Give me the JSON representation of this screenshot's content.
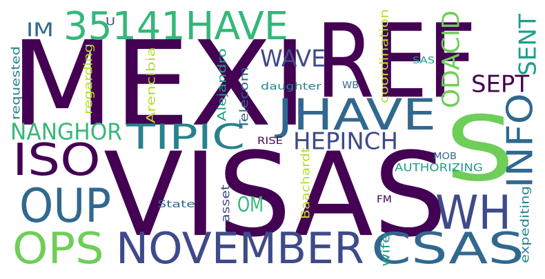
{
  "palette": {
    "dark_purple": "#440154",
    "indigo": "#3e4a89",
    "steel_blue": "#31688e",
    "teal": "#26828e",
    "sea_green": "#1f9e89",
    "green": "#35b779",
    "light_green": "#6ece58",
    "yellow_green": "#b5de2b",
    "background": "#ffffff"
  },
  "words": [
    {
      "text": "MEXI",
      "rotated": false,
      "color": "#440154"
    },
    {
      "text": "REF",
      "rotated": false,
      "color": "#440154"
    },
    {
      "text": "VISAS",
      "rotated": false,
      "color": "#440154"
    },
    {
      "text": "S",
      "rotated": false,
      "color": "#6ece58"
    },
    {
      "text": "35141HAVE",
      "rotated": false,
      "color": "#35b779"
    },
    {
      "text": "IM",
      "rotated": false,
      "color": "#31688e"
    },
    {
      "text": "U",
      "rotated": false,
      "color": "#3e4a89"
    },
    {
      "text": "WAVE",
      "rotated": false,
      "color": "#3e4a89"
    },
    {
      "text": "JHAVE",
      "rotated": false,
      "color": "#31688e"
    },
    {
      "text": "TIPIC",
      "rotated": false,
      "color": "#26828e"
    },
    {
      "text": "NANGHOR",
      "rotated": false,
      "color": "#35b779"
    },
    {
      "text": "ISO",
      "rotated": false,
      "color": "#440154"
    },
    {
      "text": "OUP",
      "rotated": false,
      "color": "#31688e"
    },
    {
      "text": "OPS",
      "rotated": false,
      "color": "#6ece58"
    },
    {
      "text": "NOVEMBER",
      "rotated": false,
      "color": "#3e4a89"
    },
    {
      "text": "CSAS",
      "rotated": false,
      "color": "#31688e"
    },
    {
      "text": "WH",
      "rotated": false,
      "color": "#3e4a89"
    },
    {
      "text": "HEPINCH",
      "rotated": false,
      "color": "#3e4a89"
    },
    {
      "text": "SEPT",
      "rotated": false,
      "color": "#440154"
    },
    {
      "text": "OM",
      "rotated": false,
      "color": "#35b779"
    },
    {
      "text": "RISE",
      "rotated": false,
      "color": "#440154"
    },
    {
      "text": "MOB",
      "rotated": false,
      "color": "#31688e"
    },
    {
      "text": "AUTHORIZING",
      "rotated": false,
      "color": "#1f9e89"
    },
    {
      "text": "SAS",
      "rotated": false,
      "color": "#1f9e89"
    },
    {
      "text": "WB",
      "rotated": false,
      "color": "#31688e"
    },
    {
      "text": "daughter",
      "rotated": false,
      "color": "#26828e"
    },
    {
      "text": "State",
      "rotated": false,
      "color": "#31688e"
    },
    {
      "text": "FM",
      "rotated": false,
      "color": "#440154"
    },
    {
      "text": "INFO",
      "rotated": true,
      "color": "#31688e"
    },
    {
      "text": "SENT",
      "rotated": true,
      "color": "#1f9e89"
    },
    {
      "text": "ODACID",
      "rotated": true,
      "color": "#6ece58"
    },
    {
      "text": "requested",
      "rotated": true,
      "color": "#26828e"
    },
    {
      "text": "regarding",
      "rotated": true,
      "color": "#b5de2b"
    },
    {
      "text": "Arencibia",
      "rotated": true,
      "color": "#b5de2b"
    },
    {
      "text": "Alejandro",
      "rotated": true,
      "color": "#1f9e89"
    },
    {
      "text": "Telecom",
      "rotated": true,
      "color": "#31688e"
    },
    {
      "text": "coordination",
      "rotated": true,
      "color": "#b5de2b"
    },
    {
      "text": "asset",
      "rotated": true,
      "color": "#3e4a89"
    },
    {
      "text": "Baachardt",
      "rotated": true,
      "color": "#b5de2b"
    },
    {
      "text": "wife",
      "rotated": true,
      "color": "#1f9e89"
    },
    {
      "text": "expediting",
      "rotated": true,
      "color": "#26828e"
    }
  ]
}
